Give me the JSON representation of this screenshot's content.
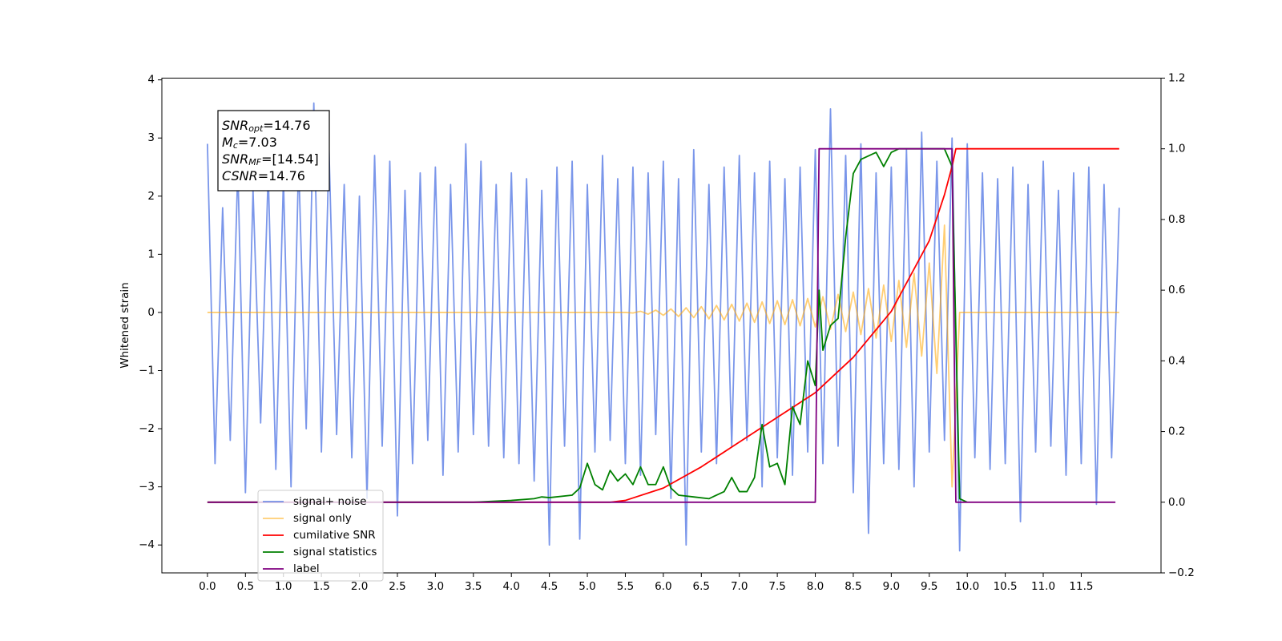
{
  "chart_data": {
    "type": "line",
    "ylabel": "Whitened strain",
    "annotation": [
      {
        "symbol": "SNR",
        "sub": "opt",
        "text": "=14.76"
      },
      {
        "symbol": "M",
        "sub": "c",
        "text": "=7.03"
      },
      {
        "symbol": "SNR",
        "sub": "MF",
        "text": "=[14.54]"
      },
      {
        "symbol": "CSNR",
        "sub": "",
        "text": "=14.76"
      }
    ],
    "xlim": [
      -0.6,
      12.55
    ],
    "ylim": [
      -4.48,
      4.03
    ],
    "y2lim": [
      -0.2,
      1.2
    ],
    "xticks": [
      {
        "value": 0,
        "label": "0.0"
      },
      0.5,
      {
        "value": 1,
        "label": "1.0"
      },
      1.5,
      {
        "value": 2,
        "label": "2.0"
      },
      2.5,
      {
        "value": 3,
        "label": "3.0"
      },
      3.5,
      {
        "value": 4,
        "label": "4.0"
      },
      4.5,
      {
        "value": 5,
        "label": "5.0"
      },
      5.5,
      {
        "value": 6,
        "label": "6.0"
      },
      6.5,
      {
        "value": 7,
        "label": "7.0"
      },
      7.5,
      {
        "value": 8,
        "label": "8.0"
      },
      8.5,
      {
        "value": 9,
        "label": "9.0"
      },
      9.5,
      {
        "value": 10,
        "label": "10.0"
      },
      10.5,
      {
        "value": 11,
        "label": "11.0"
      },
      11.5
    ],
    "yticks": [
      {
        "value": -4,
        "label": "−4"
      },
      {
        "value": -3,
        "label": "−3"
      },
      {
        "value": -2,
        "label": "−2"
      },
      {
        "value": -1,
        "label": "−1"
      },
      0,
      1,
      2,
      3,
      4
    ],
    "y2ticks": [
      {
        "value": -0.2,
        "label": "−0.2"
      },
      {
        "value": 0,
        "label": "0.0"
      },
      0.2,
      0.4,
      0.6,
      0.8,
      {
        "value": 1,
        "label": "1.0"
      },
      1.2
    ],
    "legend": "lower left",
    "series": [
      {
        "name": "signal+ noise",
        "color": "#4169e1",
        "opacity": 0.7,
        "x": [
          0,
          0.1,
          0.2,
          0.3,
          0.4,
          0.5,
          0.6,
          0.7,
          0.8,
          0.9,
          1,
          1.1,
          1.2,
          1.3,
          1.4,
          1.5,
          1.6,
          1.7,
          1.8,
          1.9,
          2,
          2.1,
          2.2,
          2.3,
          2.4,
          2.5,
          2.6,
          2.7,
          2.8,
          2.9,
          3,
          3.1,
          3.2,
          3.3,
          3.4,
          3.5,
          3.6,
          3.7,
          3.8,
          3.9,
          4,
          4.1,
          4.2,
          4.3,
          4.4,
          4.5,
          4.6,
          4.7,
          4.8,
          4.9,
          5,
          5.1,
          5.2,
          5.3,
          5.4,
          5.5,
          5.6,
          5.7,
          5.8,
          5.9,
          6,
          6.1,
          6.2,
          6.3,
          6.4,
          6.5,
          6.6,
          6.7,
          6.8,
          6.9,
          7,
          7.1,
          7.2,
          7.3,
          7.4,
          7.5,
          7.6,
          7.7,
          7.8,
          7.9,
          8,
          8.1,
          8.2,
          8.3,
          8.4,
          8.5,
          8.6,
          8.7,
          8.8,
          8.9,
          9,
          9.1,
          9.2,
          9.3,
          9.4,
          9.5,
          9.6,
          9.7,
          9.8,
          9.9,
          10,
          10.1,
          10.2,
          10.3,
          10.4,
          10.5,
          10.6,
          10.7,
          10.8,
          10.9,
          11,
          11.1,
          11.2,
          11.3,
          11.4,
          11.5,
          11.6,
          11.7,
          11.8,
          11.9,
          12
        ],
        "values": [
          2.9,
          -2.6,
          1.8,
          -2.2,
          2.5,
          -3.1,
          2.1,
          -1.9,
          2.4,
          -2.7,
          2.3,
          -3.0,
          2.6,
          -2.0,
          3.6,
          -2.4,
          2.8,
          -2.1,
          2.2,
          -2.5,
          2.0,
          -3.2,
          2.7,
          -2.3,
          2.6,
          -3.5,
          2.1,
          -2.6,
          2.4,
          -2.2,
          2.5,
          -2.8,
          2.2,
          -2.4,
          2.9,
          -2.1,
          2.6,
          -2.3,
          2.2,
          -2.5,
          2.4,
          -2.6,
          2.3,
          -2.9,
          2.1,
          -4.0,
          2.5,
          -2.3,
          2.6,
          -3.9,
          2.2,
          -2.4,
          2.7,
          -2.2,
          2.3,
          -2.6,
          2.5,
          -2.8,
          2.4,
          -2.1,
          2.6,
          -3.2,
          2.3,
          -4.0,
          2.8,
          -2.4,
          2.2,
          -2.6,
          2.5,
          -2.3,
          2.7,
          -2.2,
          2.4,
          -3.0,
          2.6,
          -2.5,
          2.3,
          -2.8,
          2.5,
          -2.4,
          2.8,
          -2.6,
          3.5,
          -2.3,
          2.7,
          -3.1,
          2.9,
          -3.8,
          2.4,
          -2.6,
          2.5,
          -2.7,
          2.8,
          -3.0,
          3.1,
          -2.4,
          2.6,
          -2.2,
          3.0,
          -4.1,
          2.9,
          -2.5,
          2.4,
          -2.7,
          2.3,
          -2.6,
          2.5,
          -3.6,
          2.2,
          -2.4,
          2.6,
          -2.3,
          2.1,
          -2.8,
          2.4,
          -2.6,
          2.5,
          -3.3,
          2.2,
          -2.5,
          1.8
        ]
      },
      {
        "name": "signal only",
        "color": "#ffa500",
        "opacity": 0.55,
        "x": [
          0,
          0.1,
          0.2,
          0.3,
          0.4,
          0.5,
          0.6,
          0.7,
          0.8,
          0.9,
          1,
          1.1,
          1.2,
          1.3,
          1.4,
          1.5,
          1.6,
          1.7,
          1.8,
          1.9,
          2,
          2.1,
          2.2,
          2.3,
          2.4,
          2.5,
          2.6,
          2.7,
          2.8,
          2.9,
          3,
          3.1,
          3.2,
          3.3,
          3.4,
          3.5,
          3.6,
          3.7,
          3.8,
          3.9,
          4,
          4.1,
          4.2,
          4.3,
          4.4,
          4.5,
          4.6,
          4.7,
          4.8,
          4.9,
          5,
          5.1,
          5.2,
          5.3,
          5.4,
          5.5,
          5.6,
          5.7,
          5.8,
          5.9,
          6,
          6.1,
          6.2,
          6.3,
          6.4,
          6.5,
          6.6,
          6.7,
          6.8,
          6.9,
          7,
          7.1,
          7.2,
          7.3,
          7.4,
          7.5,
          7.6,
          7.7,
          7.8,
          7.9,
          8,
          8.1,
          8.2,
          8.3,
          8.4,
          8.5,
          8.6,
          8.7,
          8.8,
          8.9,
          9,
          9.1,
          9.2,
          9.3,
          9.4,
          9.5,
          9.6,
          9.7,
          9.8,
          9.9,
          10,
          10.1,
          10.2,
          10.3,
          10.4,
          10.5,
          10.6,
          10.7,
          10.8,
          10.9,
          11,
          11.1,
          11.2,
          11.3,
          11.4,
          11.5,
          11.6,
          11.7,
          11.8,
          11.9,
          12
        ],
        "values": [
          0,
          0,
          0,
          0,
          0,
          0,
          0,
          0,
          0,
          0,
          0,
          0,
          0,
          0,
          0,
          0,
          0,
          0,
          0,
          0,
          0,
          0,
          0,
          0,
          0,
          0,
          0,
          0,
          0,
          0,
          0,
          0,
          0,
          0,
          0,
          0,
          0,
          0,
          0,
          0,
          0,
          0,
          0,
          0,
          0,
          0,
          0,
          0,
          0,
          0,
          0,
          0,
          0,
          0,
          0,
          0,
          -0.01,
          0.02,
          -0.03,
          0.04,
          -0.05,
          0.06,
          -0.07,
          0.08,
          -0.09,
          0.1,
          -0.11,
          0.12,
          -0.13,
          0.14,
          -0.15,
          0.16,
          -0.17,
          0.18,
          -0.19,
          0.2,
          -0.21,
          0.22,
          -0.23,
          0.24,
          -0.25,
          0.27,
          -0.29,
          0.31,
          -0.33,
          0.35,
          -0.38,
          0.41,
          -0.44,
          0.47,
          -0.5,
          0.55,
          -0.6,
          0.67,
          -0.75,
          0.85,
          -1.05,
          1.5,
          -3.0,
          0,
          0,
          0,
          0,
          0,
          0,
          0,
          0,
          0,
          0,
          0,
          0,
          0,
          0,
          0,
          0,
          0,
          0,
          0,
          0,
          0,
          0
        ]
      },
      {
        "name": "cumilative SNR",
        "color": "#ff0000",
        "axis": "y2",
        "x": [
          0,
          5.3,
          5.5,
          6,
          6.5,
          7,
          7.5,
          8,
          8.5,
          9,
          9.5,
          9.7,
          9.8,
          9.85,
          12
        ],
        "values": [
          0,
          0,
          0.005,
          0.04,
          0.1,
          0.17,
          0.24,
          0.31,
          0.41,
          0.54,
          0.74,
          0.87,
          0.95,
          1.0,
          1.0
        ]
      },
      {
        "name": "signal statistics",
        "color": "#008000",
        "axis": "y2",
        "x": [
          0,
          3.5,
          4,
          4.3,
          4.4,
          4.5,
          4.8,
          4.9,
          5,
          5.1,
          5.2,
          5.3,
          5.4,
          5.5,
          5.6,
          5.7,
          5.8,
          5.9,
          6,
          6.1,
          6.2,
          6.4,
          6.6,
          6.8,
          6.9,
          7,
          7.1,
          7.2,
          7.3,
          7.4,
          7.5,
          7.6,
          7.7,
          7.8,
          7.9,
          8.0,
          8.05,
          8.1,
          8.2,
          8.3,
          8.4,
          8.5,
          8.6,
          8.7,
          8.8,
          8.9,
          9,
          9.1,
          9.3,
          9.7,
          9.8,
          9.9,
          10
        ],
        "values": [
          0,
          0,
          0.005,
          0.01,
          0.015,
          0.013,
          0.02,
          0.04,
          0.11,
          0.05,
          0.035,
          0.09,
          0.06,
          0.08,
          0.05,
          0.1,
          0.05,
          0.05,
          0.1,
          0.04,
          0.02,
          0.015,
          0.01,
          0.03,
          0.07,
          0.03,
          0.03,
          0.07,
          0.22,
          0.1,
          0.11,
          0.05,
          0.27,
          0.22,
          0.4,
          0.33,
          0.6,
          0.43,
          0.5,
          0.52,
          0.75,
          0.93,
          0.97,
          0.98,
          0.99,
          0.95,
          0.99,
          1.0,
          1.0,
          1.0,
          0.95,
          0.01,
          0
        ]
      },
      {
        "name": "label",
        "color": "#800080",
        "axis": "y2",
        "x": [
          0,
          8.0,
          8.05,
          9.8,
          9.85,
          11.95
        ],
        "values": [
          0,
          0,
          1,
          1,
          0,
          0
        ]
      }
    ]
  }
}
